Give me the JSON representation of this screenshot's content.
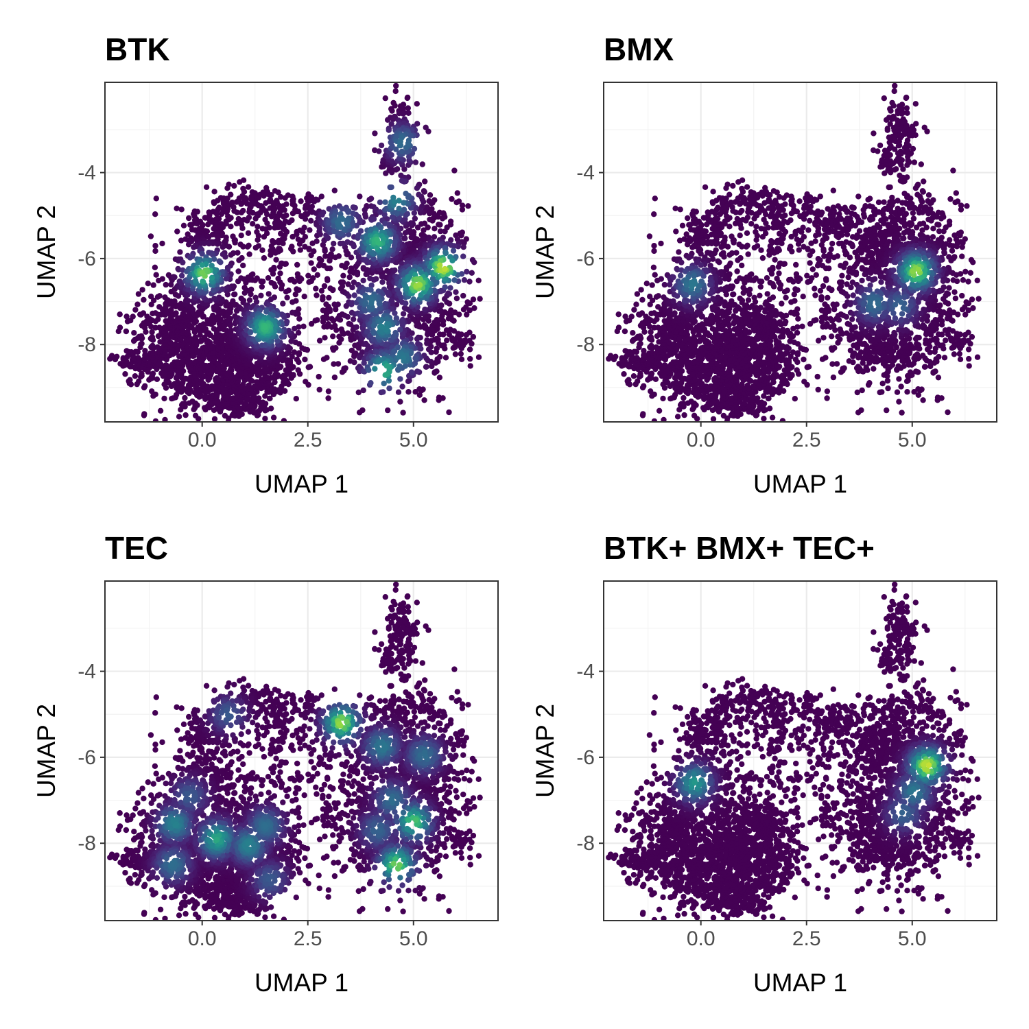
{
  "chart_data": [
    {
      "type": "scatter",
      "title": "BTK",
      "xlabel": "UMAP 1",
      "ylabel": "UMAP 2",
      "xlim": [
        -2.3,
        7.0
      ],
      "ylim": [
        -9.8,
        -1.9
      ],
      "x_ticks": [
        0.0,
        2.5,
        5.0
      ],
      "x_tick_labels": [
        "0.0",
        "2.5",
        "5.0"
      ],
      "y_ticks": [
        -4,
        -6,
        -8
      ],
      "y_tick_labels": [
        "-4",
        "-6",
        "-8"
      ],
      "grid": true,
      "legend": "none",
      "colormap": "viridis",
      "hotspots": [
        {
          "x": 0.05,
          "y": -6.35,
          "density": 0.85
        },
        {
          "x": 1.5,
          "y": -7.6,
          "density": 0.75
        },
        {
          "x": 3.3,
          "y": -5.15,
          "density": 0.45
        },
        {
          "x": 4.15,
          "y": -5.6,
          "density": 0.75
        },
        {
          "x": 4.75,
          "y": -3.3,
          "density": 0.45
        },
        {
          "x": 5.7,
          "y": -6.2,
          "density": 0.95
        },
        {
          "x": 5.1,
          "y": -6.6,
          "density": 0.9
        },
        {
          "x": 4.0,
          "y": -7.0,
          "density": 0.45
        },
        {
          "x": 4.3,
          "y": -7.6,
          "density": 0.55
        },
        {
          "x": 4.3,
          "y": -8.6,
          "density": 0.75
        },
        {
          "x": 4.75,
          "y": -8.3,
          "density": 0.5
        },
        {
          "x": 4.6,
          "y": -4.65,
          "density": 0.55
        }
      ]
    },
    {
      "type": "scatter",
      "title": "BMX",
      "xlabel": "UMAP 1",
      "ylabel": "UMAP 2",
      "xlim": [
        -2.3,
        7.0
      ],
      "ylim": [
        -9.8,
        -1.9
      ],
      "x_ticks": [
        0.0,
        2.5,
        5.0
      ],
      "x_tick_labels": [
        "0.0",
        "2.5",
        "5.0"
      ],
      "y_ticks": [
        -4,
        -6,
        -8
      ],
      "y_tick_labels": [
        "-4",
        "-6",
        "-8"
      ],
      "grid": true,
      "legend": "none",
      "colormap": "viridis",
      "hotspots": [
        {
          "x": -0.2,
          "y": -6.6,
          "density": 0.5
        },
        {
          "x": 5.1,
          "y": -6.3,
          "density": 0.9
        },
        {
          "x": 4.1,
          "y": -7.05,
          "density": 0.45
        },
        {
          "x": 4.7,
          "y": -7.1,
          "density": 0.4
        }
      ]
    },
    {
      "type": "scatter",
      "title": "TEC",
      "xlabel": "UMAP 1",
      "ylabel": "UMAP 2",
      "xlim": [
        -2.3,
        7.0
      ],
      "ylim": [
        -9.8,
        -1.9
      ],
      "x_ticks": [
        0.0,
        2.5,
        5.0
      ],
      "x_tick_labels": [
        "0.0",
        "2.5",
        "5.0"
      ],
      "y_ticks": [
        -4,
        -6,
        -8
      ],
      "y_tick_labels": [
        "-4",
        "-6",
        "-8"
      ],
      "grid": true,
      "legend": "none",
      "colormap": "viridis",
      "hotspots": [
        {
          "x": 3.3,
          "y": -5.2,
          "density": 0.9
        },
        {
          "x": -0.65,
          "y": -7.55,
          "density": 0.55
        },
        {
          "x": 0.35,
          "y": -7.9,
          "density": 0.7
        },
        {
          "x": 1.1,
          "y": -8.05,
          "density": 0.55
        },
        {
          "x": 1.5,
          "y": -7.6,
          "density": 0.45
        },
        {
          "x": -0.7,
          "y": -8.5,
          "density": 0.45
        },
        {
          "x": 0.6,
          "y": -5.0,
          "density": 0.35
        },
        {
          "x": -0.3,
          "y": -6.9,
          "density": 0.35
        },
        {
          "x": 4.25,
          "y": -5.75,
          "density": 0.5
        },
        {
          "x": 5.25,
          "y": -5.95,
          "density": 0.45
        },
        {
          "x": 4.5,
          "y": -7.0,
          "density": 0.45
        },
        {
          "x": 5.0,
          "y": -7.5,
          "density": 0.8
        },
        {
          "x": 4.6,
          "y": -8.5,
          "density": 0.85
        },
        {
          "x": 4.15,
          "y": -7.7,
          "density": 0.4
        },
        {
          "x": 1.6,
          "y": -8.85,
          "density": 0.35
        }
      ]
    },
    {
      "type": "scatter",
      "title": "BTK+ BMX+ TEC+",
      "xlabel": "UMAP 1",
      "ylabel": "UMAP 2",
      "xlim": [
        -2.3,
        7.0
      ],
      "ylim": [
        -9.8,
        -1.9
      ],
      "x_ticks": [
        0.0,
        2.5,
        5.0
      ],
      "x_tick_labels": [
        "0.0",
        "2.5",
        "5.0"
      ],
      "y_ticks": [
        -4,
        -6,
        -8
      ],
      "y_tick_labels": [
        "-4",
        "-6",
        "-8"
      ],
      "grid": true,
      "legend": "none",
      "colormap": "viridis",
      "hotspots": [
        {
          "x": -0.15,
          "y": -6.6,
          "density": 0.65
        },
        {
          "x": 5.35,
          "y": -6.2,
          "density": 0.95
        },
        {
          "x": 5.05,
          "y": -6.8,
          "density": 0.5
        },
        {
          "x": 4.8,
          "y": -7.3,
          "density": 0.4
        }
      ]
    }
  ]
}
